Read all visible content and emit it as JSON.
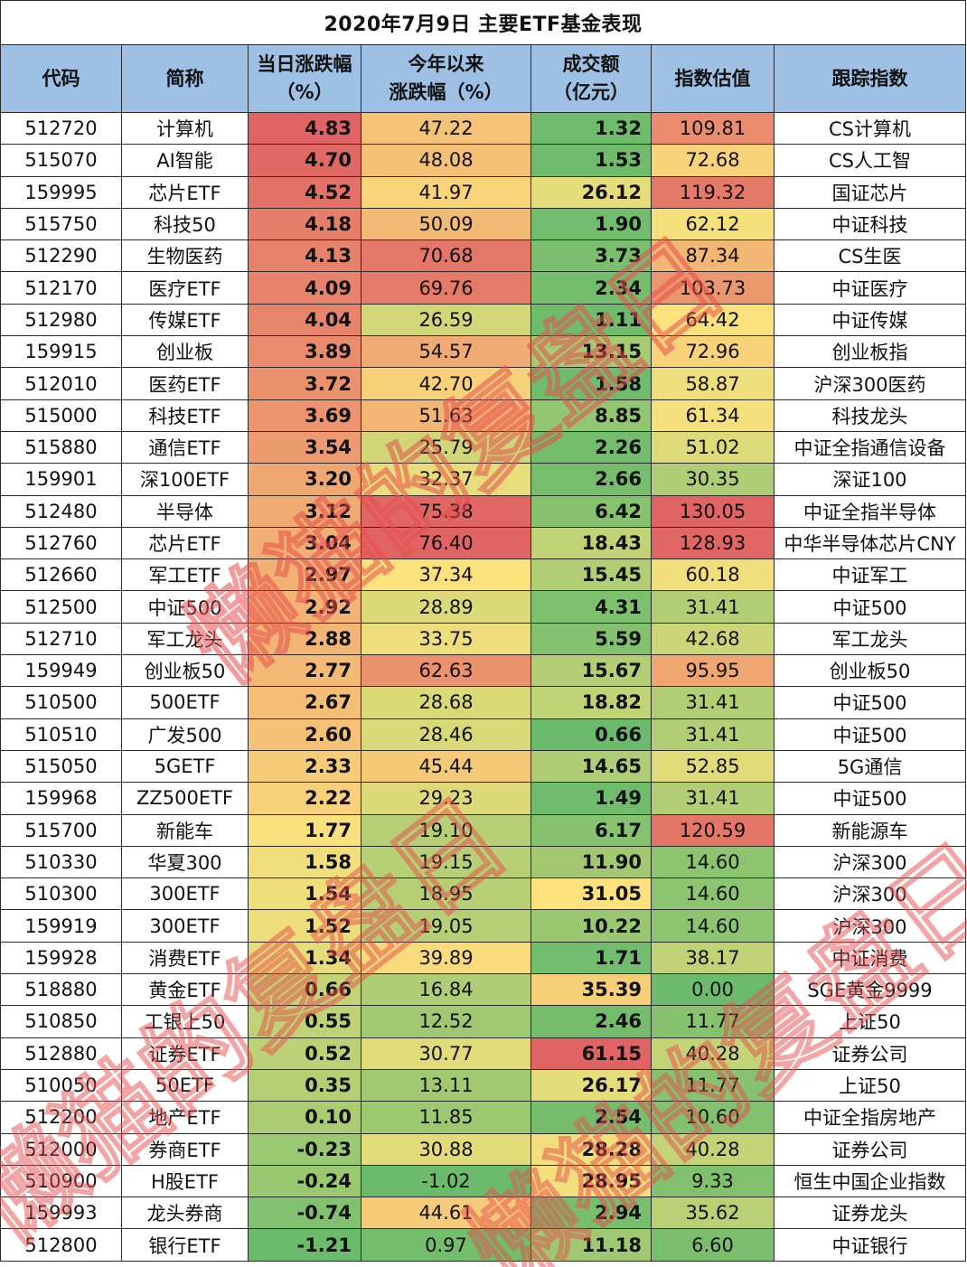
{
  "title": "2020年7月9日 主要ETF基金表现",
  "headers": {
    "code": "代码",
    "name": "简称",
    "change_l1": "当日涨跌幅",
    "change_l2": "（%）",
    "ytd_l1": "今年以来",
    "ytd_l2": "涨跌幅（%）",
    "volume_l1": "成交额",
    "volume_l2": "（亿元）",
    "valuation": "指数估值",
    "index": "跟踪指数"
  },
  "watermark": "懒猫的复盘日",
  "colors": {
    "header_bg": "#9ec0e4",
    "scale_red": "#e06464",
    "scale_yellow": "#fce27d",
    "scale_green": "#6cbb6c",
    "watermark": "#e84e4e"
  },
  "rows": [
    {
      "code": "512720",
      "name": "计算机",
      "change": "4.83",
      "ytd": "47.22",
      "volume": "1.32",
      "valuation": "109.81",
      "index": "CS计算机"
    },
    {
      "code": "515070",
      "name": "AI智能",
      "change": "4.70",
      "ytd": "48.08",
      "volume": "1.53",
      "valuation": "72.68",
      "index": "CS人工智"
    },
    {
      "code": "159995",
      "name": "芯片ETF",
      "change": "4.52",
      "ytd": "41.97",
      "volume": "26.12",
      "valuation": "119.32",
      "index": "国证芯片"
    },
    {
      "code": "515750",
      "name": "科技50",
      "change": "4.18",
      "ytd": "50.09",
      "volume": "1.90",
      "valuation": "62.12",
      "index": "中证科技"
    },
    {
      "code": "512290",
      "name": "生物医药",
      "change": "4.13",
      "ytd": "70.68",
      "volume": "3.73",
      "valuation": "87.34",
      "index": "CS生医"
    },
    {
      "code": "512170",
      "name": "医疗ETF",
      "change": "4.09",
      "ytd": "69.76",
      "volume": "2.34",
      "valuation": "103.73",
      "index": "中证医疗"
    },
    {
      "code": "512980",
      "name": "传媒ETF",
      "change": "4.04",
      "ytd": "26.59",
      "volume": "1.11",
      "valuation": "64.42",
      "index": "中证传媒"
    },
    {
      "code": "159915",
      "name": "创业板",
      "change": "3.89",
      "ytd": "54.57",
      "volume": "13.15",
      "valuation": "72.96",
      "index": "创业板指"
    },
    {
      "code": "512010",
      "name": "医药ETF",
      "change": "3.72",
      "ytd": "42.70",
      "volume": "1.58",
      "valuation": "58.87",
      "index": "沪深300医药"
    },
    {
      "code": "515000",
      "name": "科技ETF",
      "change": "3.69",
      "ytd": "51.63",
      "volume": "8.85",
      "valuation": "61.34",
      "index": "科技龙头"
    },
    {
      "code": "515880",
      "name": "通信ETF",
      "change": "3.54",
      "ytd": "25.79",
      "volume": "2.26",
      "valuation": "51.02",
      "index": "中证全指通信设备"
    },
    {
      "code": "159901",
      "name": "深100ETF",
      "change": "3.20",
      "ytd": "32.37",
      "volume": "2.66",
      "valuation": "30.35",
      "index": "深证100"
    },
    {
      "code": "512480",
      "name": "半导体",
      "change": "3.12",
      "ytd": "75.38",
      "volume": "6.42",
      "valuation": "130.05",
      "index": "中证全指半导体"
    },
    {
      "code": "512760",
      "name": "芯片ETF",
      "change": "3.04",
      "ytd": "76.40",
      "volume": "18.43",
      "valuation": "128.93",
      "index": "中华半导体芯片CNY"
    },
    {
      "code": "512660",
      "name": "军工ETF",
      "change": "2.97",
      "ytd": "37.34",
      "volume": "15.45",
      "valuation": "60.18",
      "index": "中证军工"
    },
    {
      "code": "512500",
      "name": "中证500",
      "change": "2.92",
      "ytd": "28.89",
      "volume": "4.31",
      "valuation": "31.41",
      "index": "中证500"
    },
    {
      "code": "512710",
      "name": "军工龙头",
      "change": "2.88",
      "ytd": "33.75",
      "volume": "5.59",
      "valuation": "42.68",
      "index": "军工龙头"
    },
    {
      "code": "159949",
      "name": "创业板50",
      "change": "2.77",
      "ytd": "62.63",
      "volume": "15.67",
      "valuation": "95.95",
      "index": "创业板50"
    },
    {
      "code": "510500",
      "name": "500ETF",
      "change": "2.67",
      "ytd": "28.68",
      "volume": "18.82",
      "valuation": "31.41",
      "index": "中证500"
    },
    {
      "code": "510510",
      "name": "广发500",
      "change": "2.60",
      "ytd": "28.46",
      "volume": "0.66",
      "valuation": "31.41",
      "index": "中证500"
    },
    {
      "code": "515050",
      "name": "5GETF",
      "change": "2.33",
      "ytd": "45.44",
      "volume": "14.65",
      "valuation": "52.85",
      "index": "5G通信"
    },
    {
      "code": "159968",
      "name": "ZZ500ETF",
      "change": "2.22",
      "ytd": "29.23",
      "volume": "1.49",
      "valuation": "31.41",
      "index": "中证500"
    },
    {
      "code": "515700",
      "name": "新能车",
      "change": "1.77",
      "ytd": "19.10",
      "volume": "6.17",
      "valuation": "120.59",
      "index": "新能源车"
    },
    {
      "code": "510330",
      "name": "华夏300",
      "change": "1.58",
      "ytd": "19.15",
      "volume": "11.90",
      "valuation": "14.60",
      "index": "沪深300"
    },
    {
      "code": "510300",
      "name": "300ETF",
      "change": "1.54",
      "ytd": "18.95",
      "volume": "31.05",
      "valuation": "14.60",
      "index": "沪深300"
    },
    {
      "code": "159919",
      "name": "300ETF",
      "change": "1.52",
      "ytd": "19.05",
      "volume": "10.22",
      "valuation": "14.60",
      "index": "沪深300"
    },
    {
      "code": "159928",
      "name": "消费ETF",
      "change": "1.34",
      "ytd": "39.89",
      "volume": "1.71",
      "valuation": "38.17",
      "index": "中证消费"
    },
    {
      "code": "518880",
      "name": "黄金ETF",
      "change": "0.66",
      "ytd": "16.84",
      "volume": "35.39",
      "valuation": "0.00",
      "index": "SGE黄金9999"
    },
    {
      "code": "510850",
      "name": "工银上50",
      "change": "0.55",
      "ytd": "12.52",
      "volume": "2.46",
      "valuation": "11.77",
      "index": "上证50"
    },
    {
      "code": "512880",
      "name": "证券ETF",
      "change": "0.52",
      "ytd": "30.77",
      "volume": "61.15",
      "valuation": "40.28",
      "index": "证券公司"
    },
    {
      "code": "510050",
      "name": "50ETF",
      "change": "0.35",
      "ytd": "13.11",
      "volume": "26.17",
      "valuation": "11.77",
      "index": "上证50"
    },
    {
      "code": "512200",
      "name": "地产ETF",
      "change": "0.10",
      "ytd": "11.85",
      "volume": "2.54",
      "valuation": "10.60",
      "index": "中证全指房地产"
    },
    {
      "code": "512000",
      "name": "券商ETF",
      "change": "-0.23",
      "ytd": "30.88",
      "volume": "28.28",
      "valuation": "40.28",
      "index": "证券公司"
    },
    {
      "code": "510900",
      "name": "H股ETF",
      "change": "-0.24",
      "ytd": "-1.02",
      "volume": "28.95",
      "valuation": "9.33",
      "index": "恒生中国企业指数"
    },
    {
      "code": "159993",
      "name": "龙头券商",
      "change": "-0.74",
      "ytd": "44.61",
      "volume": "2.94",
      "valuation": "35.62",
      "index": "证券龙头"
    },
    {
      "code": "512800",
      "name": "银行ETF",
      "change": "-1.21",
      "ytd": "0.97",
      "volume": "11.18",
      "valuation": "6.60",
      "index": "中证银行"
    }
  ]
}
